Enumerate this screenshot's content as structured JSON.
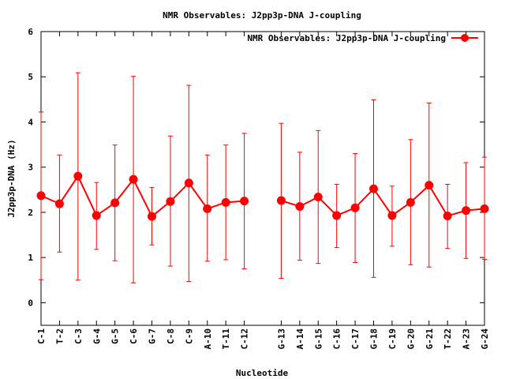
{
  "chart_data": {
    "type": "line",
    "title": "NMR Observables: J2pp3p-DNA J-coupling",
    "xlabel": "Nucleotide",
    "ylabel": "J2pp3p-DNA (Hz)",
    "ylim": [
      -0.5,
      6
    ],
    "yticks": [
      0,
      1,
      2,
      3,
      4,
      5,
      6
    ],
    "grid": false,
    "legend_position": "top-right",
    "color": "#ff0000",
    "series": [
      {
        "name": "NMR Observables: J2pp3p-DNA J-coupling",
        "segments": [
          {
            "categories": [
              "C-1",
              "T-2",
              "C-3",
              "G-4",
              "G-5",
              "C-6",
              "G-7",
              "C-8",
              "C-9",
              "A-10",
              "T-11",
              "C-12"
            ],
            "positions": [
              1,
              2,
              3,
              4,
              5,
              6,
              7,
              8,
              9,
              10,
              11,
              12
            ],
            "values": [
              2.37,
              2.19,
              2.8,
              1.93,
              2.21,
              2.73,
              1.91,
              2.24,
              2.65,
              2.08,
              2.22,
              2.25
            ],
            "err_low": [
              0.51,
              1.12,
              0.5,
              1.18,
              0.93,
              0.44,
              1.28,
              0.81,
              0.47,
              0.92,
              0.95,
              0.75
            ],
            "err_high": [
              4.22,
              3.27,
              5.09,
              2.66,
              3.49,
              5.01,
              2.55,
              3.69,
              4.81,
              3.27,
              3.49,
              3.75
            ]
          },
          {
            "categories": [
              "G-13",
              "A-14",
              "G-15",
              "C-16",
              "C-17",
              "G-18",
              "C-19",
              "G-20",
              "G-21",
              "T-22",
              "A-23",
              "G-24"
            ],
            "positions": [
              14,
              15,
              16,
              17,
              18,
              19,
              20,
              21,
              22,
              23,
              24,
              25
            ],
            "values": [
              2.26,
              2.13,
              2.34,
              1.93,
              2.1,
              2.52,
              1.93,
              2.22,
              2.6,
              1.92,
              2.04,
              2.08
            ],
            "err_low": [
              0.54,
              0.94,
              0.87,
              1.22,
              0.89,
              0.56,
              1.25,
              0.84,
              0.79,
              1.2,
              0.98,
              0.96
            ],
            "err_high": [
              3.97,
              3.33,
              3.81,
              2.62,
              3.3,
              4.49,
              2.58,
              3.61,
              4.42,
              2.62,
              3.1,
              3.22
            ]
          }
        ]
      }
    ]
  }
}
